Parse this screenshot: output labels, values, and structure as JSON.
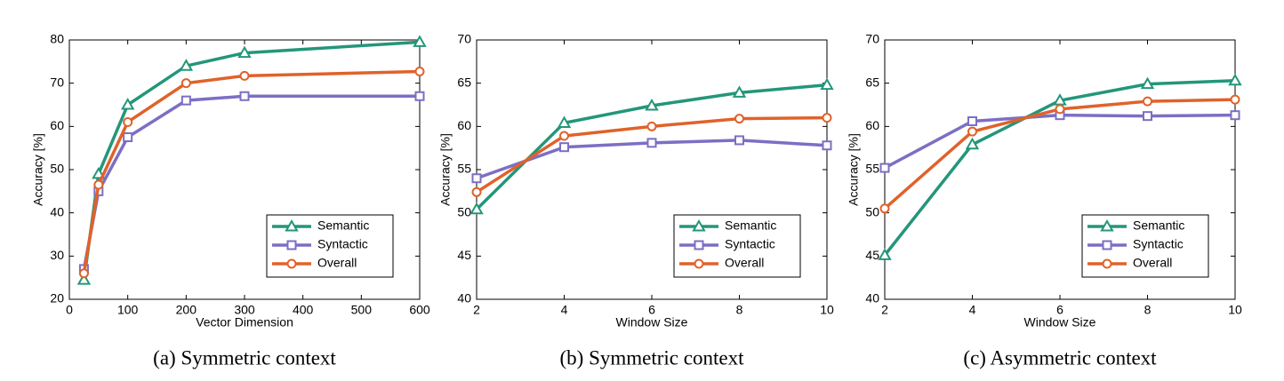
{
  "chart_data": [
    {
      "type": "line",
      "caption": "(a)  Symmetric context",
      "xlabel": "Vector Dimension",
      "ylabel": "Accuracy [%]",
      "x": [
        25,
        50,
        100,
        200,
        300,
        600
      ],
      "xlim": [
        0,
        600
      ],
      "xticks": [
        0,
        100,
        200,
        300,
        400,
        500,
        600
      ],
      "ylim": [
        20,
        80
      ],
      "yticks": [
        20,
        30,
        40,
        50,
        60,
        70,
        80
      ],
      "legend": "lower right",
      "series": [
        {
          "name": "Semantic",
          "color": "#23967a",
          "marker": "triangle",
          "values": [
            24.5,
            49,
            65,
            74,
            77,
            79.5
          ]
        },
        {
          "name": "Syntactic",
          "color": "#7b6fc4",
          "marker": "square",
          "values": [
            27,
            45,
            57.5,
            66,
            67,
            67
          ]
        },
        {
          "name": "Overall",
          "color": "#e0622a",
          "marker": "circle",
          "values": [
            26,
            46.5,
            61,
            70,
            71.7,
            72.7
          ]
        }
      ]
    },
    {
      "type": "line",
      "caption": "(b)  Symmetric context",
      "xlabel": "Window Size",
      "ylabel": "Accuracy [%]",
      "x": [
        2,
        4,
        6,
        8,
        10
      ],
      "xlim": [
        2,
        10
      ],
      "xticks": [
        2,
        4,
        6,
        8,
        10
      ],
      "ylim": [
        40,
        70
      ],
      "yticks": [
        40,
        45,
        50,
        55,
        60,
        65,
        70
      ],
      "legend": "lower right",
      "series": [
        {
          "name": "Semantic",
          "color": "#23967a",
          "marker": "triangle",
          "values": [
            50.4,
            60.4,
            62.4,
            63.9,
            64.8
          ]
        },
        {
          "name": "Syntactic",
          "color": "#7b6fc4",
          "marker": "square",
          "values": [
            54,
            57.6,
            58.1,
            58.4,
            57.8
          ]
        },
        {
          "name": "Overall",
          "color": "#e0622a",
          "marker": "circle",
          "values": [
            52.4,
            58.9,
            60,
            60.9,
            61
          ]
        }
      ]
    },
    {
      "type": "line",
      "caption": "(c)  Asymmetric context",
      "xlabel": "Window Size",
      "ylabel": "Accuracy [%]",
      "x": [
        2,
        4,
        6,
        8,
        10
      ],
      "xlim": [
        2,
        10
      ],
      "xticks": [
        2,
        4,
        6,
        8,
        10
      ],
      "ylim": [
        40,
        70
      ],
      "yticks": [
        40,
        45,
        50,
        55,
        60,
        65,
        70
      ],
      "legend": "lower right",
      "series": [
        {
          "name": "Semantic",
          "color": "#23967a",
          "marker": "triangle",
          "values": [
            45.1,
            57.9,
            63,
            64.9,
            65.3
          ]
        },
        {
          "name": "Syntactic",
          "color": "#7b6fc4",
          "marker": "square",
          "values": [
            55.2,
            60.6,
            61.3,
            61.2,
            61.3
          ]
        },
        {
          "name": "Overall",
          "color": "#e0622a",
          "marker": "circle",
          "values": [
            50.5,
            59.4,
            62,
            62.9,
            63.1
          ]
        }
      ]
    }
  ]
}
